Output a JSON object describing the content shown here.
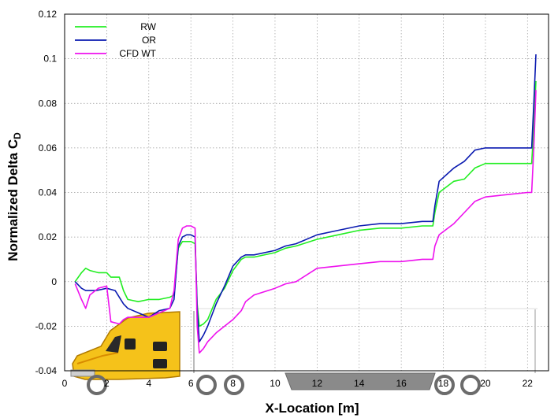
{
  "chart_data": {
    "type": "line",
    "xlabel": "X-Location [m]",
    "ylabel_main": "Normalized Delta C",
    "ylabel_sub": "D",
    "xlim": [
      0,
      23
    ],
    "ylim": [
      -0.04,
      0.12
    ],
    "xticks": [
      0,
      2,
      4,
      6,
      8,
      10,
      12,
      14,
      16,
      18,
      20,
      22
    ],
    "yticks": [
      -0.04,
      -0.02,
      0,
      0.02,
      0.04,
      0.06,
      0.08,
      0.1,
      0.12
    ],
    "ytick_labels": [
      "-0.04",
      "-0.02",
      "0",
      "0.02",
      "0.04",
      "0.06",
      "0.08",
      "0.1",
      "0.12"
    ],
    "grid": true,
    "legend_position": "top-left",
    "series": [
      {
        "name": "RW",
        "color": "#22ee22",
        "x": [
          0.5,
          0.8,
          1.0,
          1.2,
          1.6,
          2.0,
          2.2,
          2.6,
          2.8,
          3.0,
          3.5,
          4.0,
          4.5,
          5.0,
          5.2,
          5.4,
          5.6,
          5.8,
          6.0,
          6.2,
          6.3,
          6.4,
          6.6,
          6.8,
          7.2,
          7.6,
          8.0,
          8.4,
          8.6,
          9.0,
          10.0,
          10.5,
          11.0,
          12.0,
          13.0,
          14.0,
          15.0,
          16.0,
          17.0,
          17.5,
          17.6,
          17.8,
          18.5,
          19.0,
          19.5,
          20.0,
          21.0,
          22.0,
          22.2,
          22.3,
          22.4
        ],
        "y": [
          0.0,
          0.004,
          0.006,
          0.005,
          0.004,
          0.004,
          0.002,
          0.002,
          -0.004,
          -0.008,
          -0.009,
          -0.008,
          -0.008,
          -0.007,
          -0.006,
          0.015,
          0.018,
          0.018,
          0.018,
          0.017,
          -0.01,
          -0.02,
          -0.019,
          -0.017,
          -0.008,
          -0.003,
          0.005,
          0.01,
          0.011,
          0.011,
          0.013,
          0.015,
          0.016,
          0.019,
          0.021,
          0.023,
          0.024,
          0.024,
          0.025,
          0.025,
          0.031,
          0.04,
          0.045,
          0.046,
          0.051,
          0.053,
          0.053,
          0.053,
          0.053,
          0.07,
          0.09
        ]
      },
      {
        "name": "OR",
        "color": "#0a1ab0",
        "x": [
          0.5,
          0.8,
          1.0,
          1.5,
          2.0,
          2.4,
          2.8,
          3.0,
          3.5,
          4.0,
          4.5,
          5.0,
          5.2,
          5.4,
          5.6,
          5.8,
          6.0,
          6.2,
          6.3,
          6.4,
          6.6,
          6.8,
          7.2,
          7.6,
          8.0,
          8.4,
          8.6,
          9.0,
          10.0,
          10.5,
          11.0,
          12.0,
          13.0,
          14.0,
          15.0,
          16.0,
          17.0,
          17.5,
          17.6,
          17.8,
          18.5,
          19.0,
          19.5,
          20.0,
          21.0,
          22.0,
          22.2,
          22.3,
          22.4
        ],
        "y": [
          0.0,
          -0.003,
          -0.004,
          -0.004,
          -0.003,
          -0.004,
          -0.01,
          -0.012,
          -0.014,
          -0.016,
          -0.013,
          -0.012,
          -0.008,
          0.016,
          0.02,
          0.021,
          0.021,
          0.02,
          -0.012,
          -0.027,
          -0.024,
          -0.02,
          -0.01,
          -0.002,
          0.007,
          0.011,
          0.012,
          0.012,
          0.014,
          0.016,
          0.017,
          0.021,
          0.023,
          0.025,
          0.026,
          0.026,
          0.027,
          0.027,
          0.034,
          0.045,
          0.051,
          0.054,
          0.059,
          0.06,
          0.06,
          0.06,
          0.06,
          0.08,
          0.102
        ]
      },
      {
        "name": "CFD WT",
        "color": "#ee11ee",
        "x": [
          0.5,
          0.8,
          1.0,
          1.2,
          1.6,
          2.0,
          2.2,
          2.6,
          2.8,
          3.0,
          3.5,
          4.0,
          4.5,
          5.0,
          5.2,
          5.4,
          5.6,
          5.8,
          6.0,
          6.2,
          6.3,
          6.4,
          6.6,
          6.8,
          7.2,
          7.6,
          8.0,
          8.4,
          8.6,
          9.0,
          10.0,
          10.5,
          11.0,
          12.0,
          13.0,
          14.0,
          15.0,
          16.0,
          17.0,
          17.5,
          17.6,
          17.8,
          18.5,
          19.0,
          19.5,
          20.0,
          21.0,
          22.0,
          22.2,
          22.3,
          22.4
        ],
        "y": [
          -0.001,
          -0.008,
          -0.012,
          -0.006,
          -0.003,
          -0.002,
          -0.018,
          -0.019,
          -0.017,
          -0.016,
          -0.016,
          -0.016,
          -0.014,
          -0.012,
          -0.004,
          0.019,
          0.024,
          0.025,
          0.025,
          0.024,
          -0.02,
          -0.032,
          -0.03,
          -0.027,
          -0.023,
          -0.02,
          -0.017,
          -0.013,
          -0.009,
          -0.006,
          -0.003,
          -0.001,
          0.0,
          0.006,
          0.007,
          0.008,
          0.009,
          0.009,
          0.01,
          0.01,
          0.016,
          0.021,
          0.026,
          0.031,
          0.036,
          0.038,
          0.039,
          0.04,
          0.04,
          0.06,
          0.086
        ]
      }
    ]
  }
}
